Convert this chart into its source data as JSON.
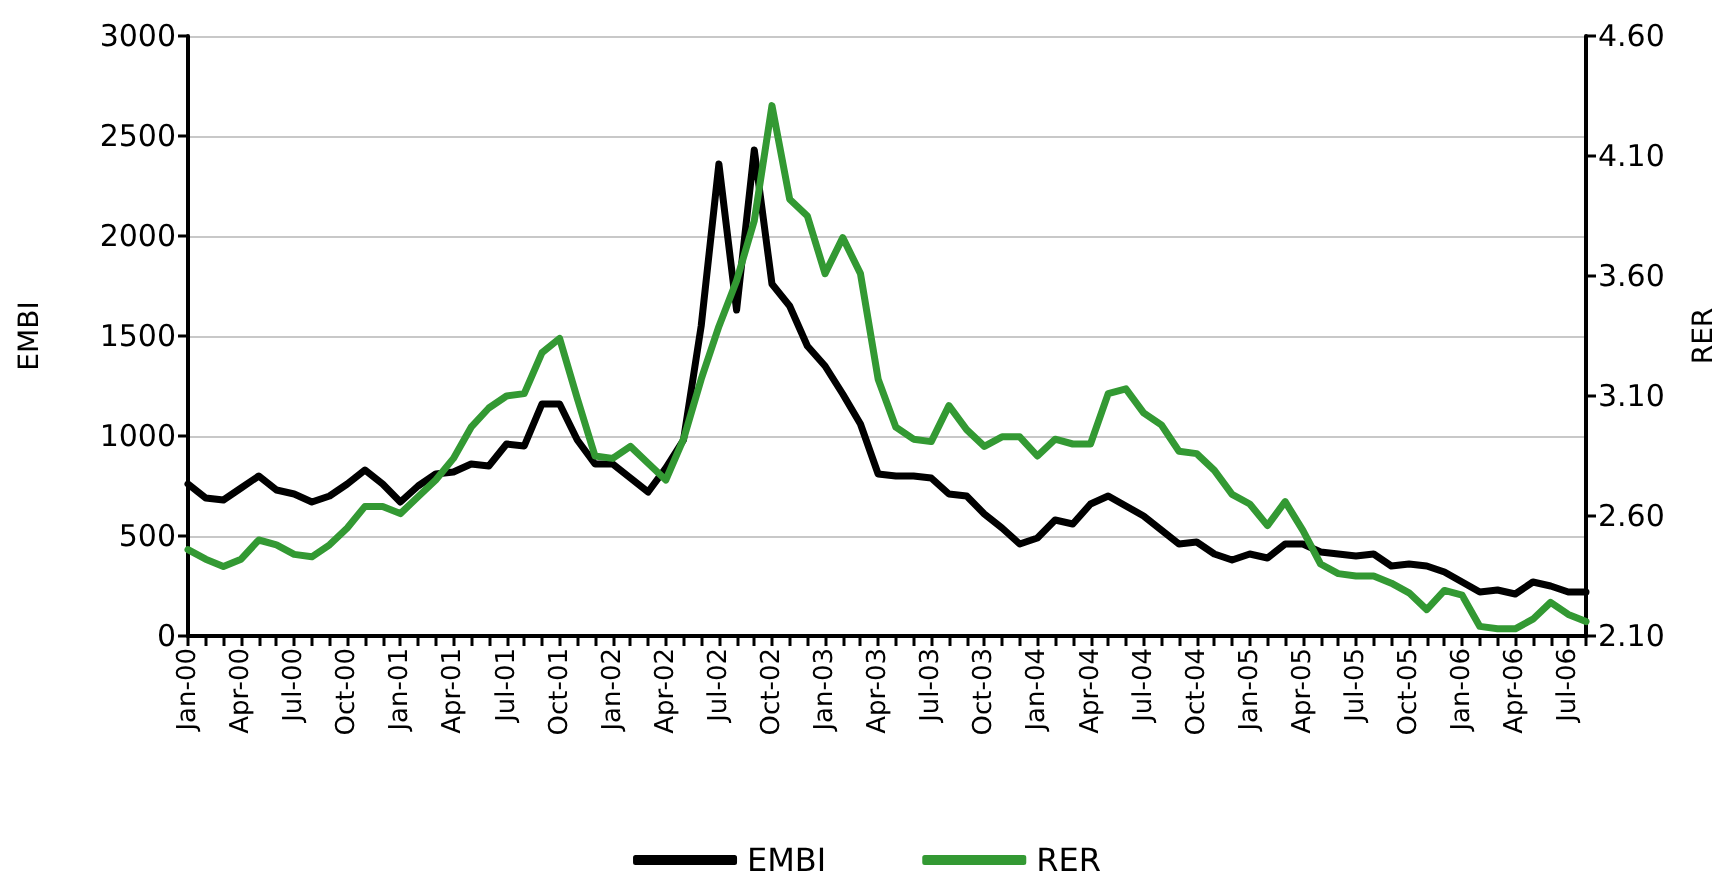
{
  "chart_data": {
    "type": "line",
    "ylabel": "EMBI",
    "y2label": "RER",
    "categories": [
      "Jan-00",
      null,
      null,
      "Apr-00",
      null,
      null,
      "Jul-00",
      null,
      null,
      "Oct-00",
      null,
      null,
      "Jan-01",
      null,
      null,
      "Apr-01",
      null,
      null,
      "Jul-01",
      null,
      null,
      "Oct-01",
      null,
      null,
      "Jan-02",
      null,
      null,
      "Apr-02",
      null,
      null,
      "Jul-02",
      null,
      null,
      "Oct-02",
      null,
      null,
      "Jan-03",
      null,
      null,
      "Apr-03",
      null,
      null,
      "Jul-03",
      null,
      null,
      "Oct-03",
      null,
      null,
      "Jan-04",
      null,
      null,
      "Apr-04",
      null,
      null,
      "Jul-04",
      null,
      null,
      "Oct-04",
      null,
      null,
      "Jan-05",
      null,
      null,
      "Apr-05",
      null,
      null,
      "Jul-05",
      null,
      null,
      "Oct-05",
      null,
      null,
      "Jan-06",
      null,
      null,
      "Apr-06",
      null,
      null,
      "Jul-06",
      null
    ],
    "series": [
      {
        "name": "EMBI",
        "color": "#000000",
        "values": [
          760,
          690,
          680,
          740,
          800,
          730,
          710,
          670,
          700,
          760,
          830,
          760,
          670,
          750,
          810,
          820,
          860,
          850,
          960,
          950,
          1160,
          1160,
          980,
          860,
          860,
          790,
          720,
          840,
          980,
          1550,
          2360,
          1630,
          2430,
          1760,
          1650,
          1450,
          1350,
          1210,
          1060,
          810,
          800,
          800,
          790,
          710,
          700,
          610,
          540,
          460,
          490,
          580,
          560,
          660,
          700,
          650,
          600,
          530,
          460,
          470,
          410,
          380,
          410,
          390,
          460,
          460,
          420,
          410,
          400,
          410,
          350,
          360,
          350,
          320,
          270,
          220,
          230,
          210,
          270,
          250,
          220,
          220
        ]
      },
      {
        "name": "RER",
        "color": "#339933",
        "axis": "y2",
        "values": [
          2.46,
          2.42,
          2.39,
          2.42,
          2.5,
          2.48,
          2.44,
          2.43,
          2.48,
          2.55,
          2.64,
          2.64,
          2.61,
          2.68,
          2.75,
          2.84,
          2.97,
          3.05,
          3.1,
          3.11,
          3.28,
          3.34,
          3.09,
          2.85,
          2.84,
          2.89,
          2.82,
          2.75,
          2.92,
          3.17,
          3.39,
          3.58,
          3.83,
          4.31,
          3.92,
          3.85,
          3.61,
          3.76,
          3.61,
          3.17,
          2.97,
          2.92,
          2.91,
          3.06,
          2.96,
          2.89,
          2.93,
          2.93,
          2.85,
          2.92,
          2.9,
          2.9,
          3.11,
          3.13,
          3.03,
          2.98,
          2.87,
          2.86,
          2.79,
          2.69,
          2.65,
          2.56,
          2.66,
          2.54,
          2.4,
          2.36,
          2.35,
          2.35,
          2.32,
          2.28,
          2.21,
          2.29,
          2.27,
          2.14,
          2.13,
          2.13,
          2.17,
          2.24,
          2.19,
          2.16
        ]
      }
    ],
    "ylim": [
      0,
      3000
    ],
    "yticks": [
      0,
      500,
      1000,
      1500,
      2000,
      2500,
      3000
    ],
    "y2lim": [
      2.1,
      4.6
    ],
    "y2ticks": [
      {
        "value": 2.1,
        "label": "2.10"
      },
      {
        "value": 2.6,
        "label": "2.60"
      },
      {
        "value": 3.1,
        "label": "3.10"
      },
      {
        "value": 3.6,
        "label": "3.60"
      },
      {
        "value": 4.1,
        "label": "4.10"
      },
      {
        "value": 4.6,
        "label": "4.60"
      }
    ],
    "grid": "y",
    "legend": "bottom",
    "marker": "none",
    "line_style": "solid"
  }
}
